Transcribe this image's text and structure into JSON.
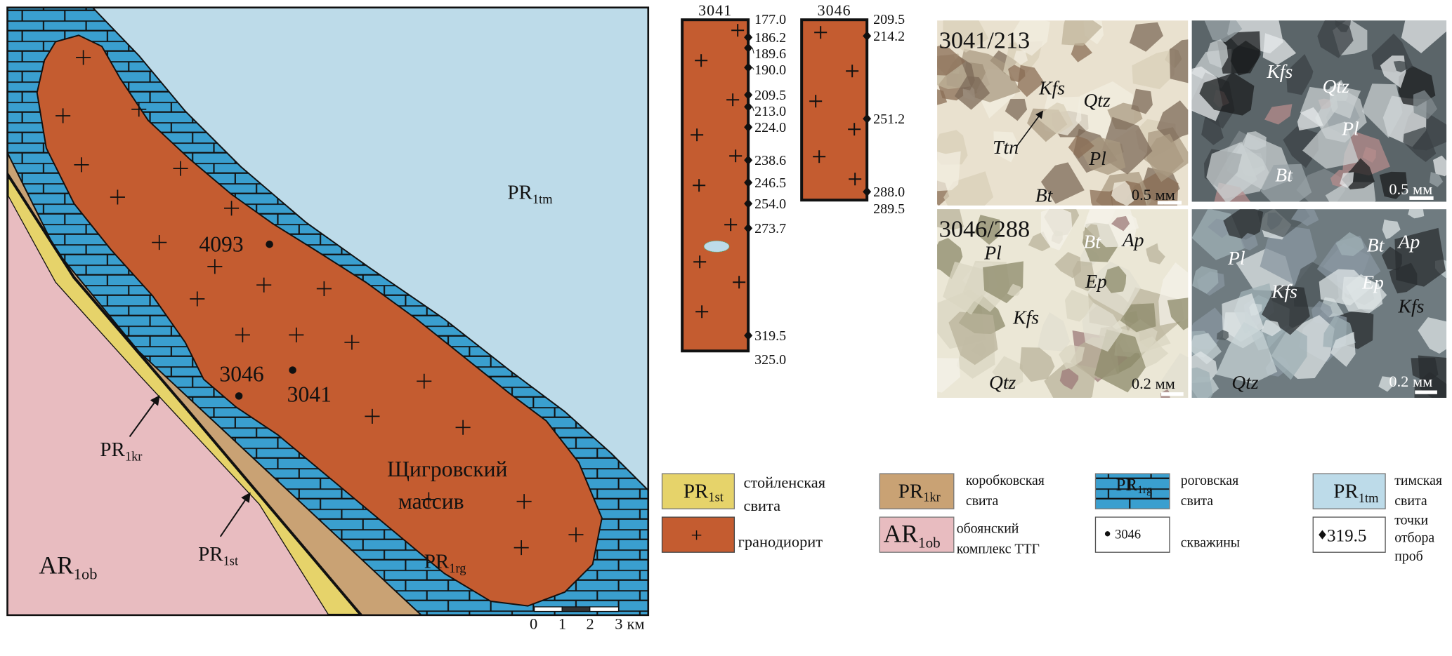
{
  "colors": {
    "granodiorite": "#c45c30",
    "rogovskaya": "#3a9fcf",
    "timskaya": "#bddbe9",
    "korobkovskaya": "#c9a274",
    "stoilenskaya": "#e6d36a",
    "oboyan": "#e8bcc0"
  },
  "map": {
    "units": {
      "tm": {
        "main": "PR",
        "sub": "1tm"
      },
      "rg": {
        "main": "PR",
        "sub": "1rg"
      },
      "kr": {
        "main": "PR",
        "sub": "1kr"
      },
      "st": {
        "main": "PR",
        "sub": "1st"
      },
      "ob": {
        "main": "AR",
        "sub": "1ob"
      }
    },
    "massif_name": [
      "Щигровский",
      "массив"
    ],
    "wells": [
      "4093",
      "3046",
      "3041"
    ],
    "scale_bar": {
      "ticks": [
        "0",
        "1",
        "2",
        "3"
      ],
      "unit": "км"
    }
  },
  "columns": [
    {
      "well": "3041",
      "top": "177.0",
      "bottom": "325.0",
      "samples": [
        "186.2",
        "189.6",
        "190.0",
        "209.5",
        "213.0",
        "224.0",
        "238.6",
        "246.5",
        "254.0",
        "273.7",
        "319.5"
      ]
    },
    {
      "well": "3046",
      "top": "209.5",
      "bottom": "289.5",
      "samples": [
        "214.2",
        "251.2",
        "288.0"
      ]
    }
  ],
  "photos": [
    {
      "sample": "3041/213",
      "scale": "0.5 мм",
      "labels": [
        "Kfs",
        "Qtz",
        "Ttn",
        "Pl",
        "Bt"
      ]
    },
    {
      "sample": "",
      "scale": "0.5 мм",
      "labels": [
        "Kfs",
        "Qtz",
        "Pl",
        "Bt"
      ]
    },
    {
      "sample": "3046/288",
      "scale": "0.2 мм",
      "labels": [
        "Pl",
        "Bt",
        "Ap",
        "Ep",
        "Kfs",
        "Qtz"
      ]
    },
    {
      "sample": "",
      "scale": "0.2 мм",
      "labels": [
        "Pl",
        "Bt",
        "Ap",
        "Kfs",
        "Ep",
        "Kfs",
        "Qtz"
      ]
    }
  ],
  "legend": [
    {
      "symbol": {
        "main": "PR",
        "sub": "1st"
      },
      "text": [
        "стойленская",
        "свита"
      ]
    },
    {
      "symbol": {
        "main": "PR",
        "sub": "1kr"
      },
      "text": [
        "коробковская",
        "свита"
      ]
    },
    {
      "symbol": {
        "main": "PR",
        "sub": "1rg"
      },
      "text": [
        "роговская",
        "свита"
      ]
    },
    {
      "symbol": {
        "main": "PR",
        "sub": "1tm"
      },
      "text": [
        "тимская",
        "свита"
      ]
    },
    {
      "symbol": "+",
      "text": [
        "гранодиорит"
      ]
    },
    {
      "symbol": {
        "main": "AR",
        "sub": "1ob"
      },
      "text": [
        "обоянский",
        "комплекс ТТГ"
      ]
    },
    {
      "symbol": "3046",
      "text": [
        "скважины"
      ]
    },
    {
      "symbol": "319.5",
      "text": [
        "точки",
        "отбора",
        "проб"
      ]
    }
  ]
}
